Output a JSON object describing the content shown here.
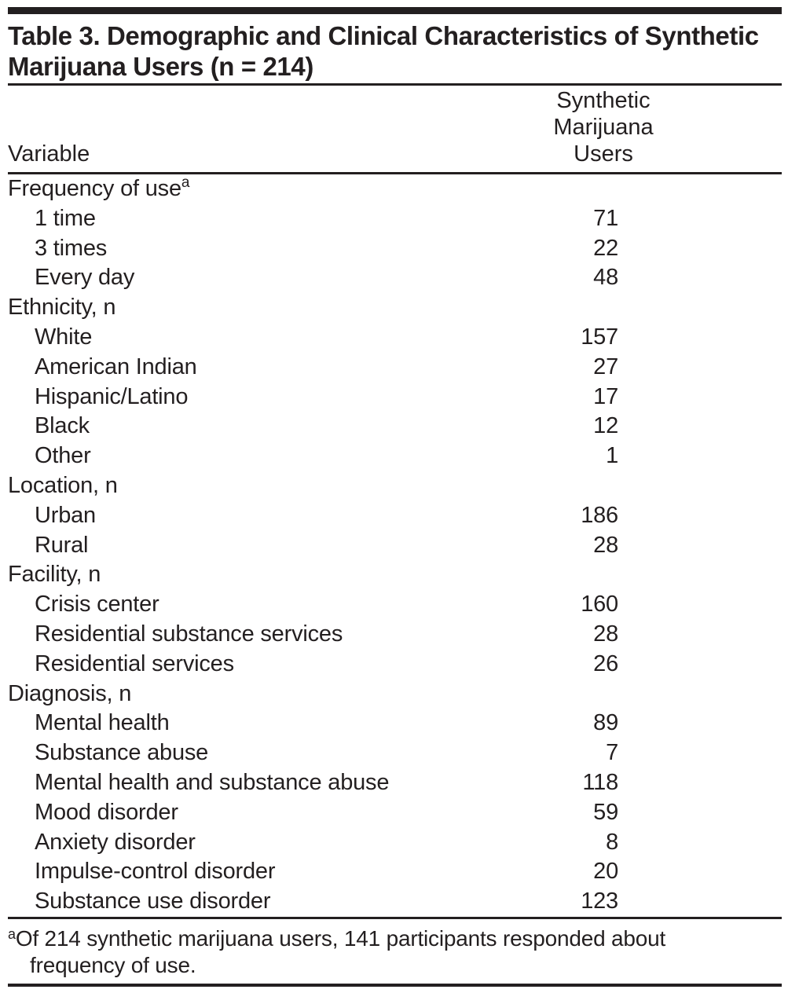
{
  "page": {
    "background_color": "#ffffff",
    "ink_color": "#231f20"
  },
  "table": {
    "title": "Table 3. Demographic and Clinical Characteristics of Synthetic Marijuana Users (n = 214)",
    "header": {
      "variable_label": "Variable",
      "value_column_label": "Synthetic Marijuana Users"
    },
    "rows": [
      {
        "label": "Frequency of use",
        "sup": "a",
        "value": "",
        "indent": false
      },
      {
        "label": "1 time",
        "value": "71",
        "indent": true
      },
      {
        "label": "3 times",
        "value": "22",
        "indent": true
      },
      {
        "label": "Every day",
        "value": "48",
        "indent": true
      },
      {
        "label": "Ethnicity, n",
        "value": "",
        "indent": false
      },
      {
        "label": "White",
        "value": "157",
        "indent": true
      },
      {
        "label": "American Indian",
        "value": "27",
        "indent": true
      },
      {
        "label": "Hispanic/Latino",
        "value": "17",
        "indent": true
      },
      {
        "label": "Black",
        "value": "12",
        "indent": true
      },
      {
        "label": "Other",
        "value": "1",
        "indent": true
      },
      {
        "label": "Location, n",
        "value": "",
        "indent": false
      },
      {
        "label": "Urban",
        "value": "186",
        "indent": true
      },
      {
        "label": "Rural",
        "value": "28",
        "indent": true
      },
      {
        "label": "Facility, n",
        "value": "",
        "indent": false
      },
      {
        "label": "Crisis center",
        "value": "160",
        "indent": true
      },
      {
        "label": "Residential substance services",
        "value": "28",
        "indent": true
      },
      {
        "label": "Residential services",
        "value": "26",
        "indent": true
      },
      {
        "label": "Diagnosis, n",
        "value": "",
        "indent": false
      },
      {
        "label": "Mental health",
        "value": "89",
        "indent": true
      },
      {
        "label": "Substance abuse",
        "value": "7",
        "indent": true
      },
      {
        "label": "Mental health and substance abuse",
        "value": "118",
        "indent": true
      },
      {
        "label": "Mood disorder",
        "value": "59",
        "indent": true
      },
      {
        "label": "Anxiety disorder",
        "value": "8",
        "indent": true
      },
      {
        "label": "Impulse-control disorder",
        "value": "20",
        "indent": true
      },
      {
        "label": "Substance use disorder",
        "value": "123",
        "indent": true
      }
    ],
    "footnote": {
      "marker": "a",
      "line1": "Of 214 synthetic marijuana users, 141 participants responded about",
      "line2": "frequency of use."
    }
  }
}
